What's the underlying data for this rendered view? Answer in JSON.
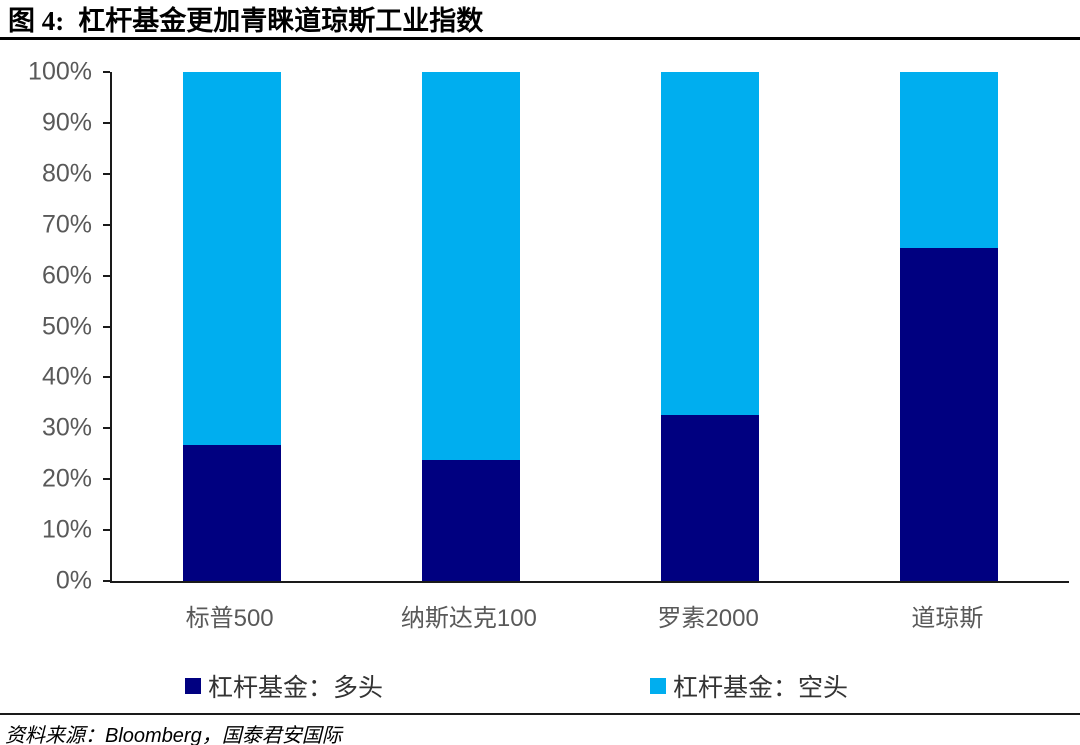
{
  "header": {
    "figure_label": "图 4:",
    "title": "杠杆基金更加青睐道琼斯工业指数"
  },
  "footer": {
    "source": "资料来源：Bloomberg，国泰君安国际"
  },
  "chart_data": {
    "type": "bar",
    "stacked": true,
    "percent_stacked": true,
    "title": "杠杆基金更加青睐道琼斯工业指数",
    "categories": [
      "标普500",
      "纳斯达克100",
      "罗素2000",
      "道琼斯"
    ],
    "series": [
      {
        "name": "杠杆基金：多头",
        "color": "#000080",
        "values": [
          26.7,
          23.8,
          32.6,
          65.4
        ]
      },
      {
        "name": "杠杆基金：空头",
        "color": "#00AEEF",
        "values": [
          73.3,
          76.2,
          67.4,
          34.6
        ]
      }
    ],
    "xlabel": "",
    "ylabel": "",
    "ylim": [
      0,
      100
    ],
    "yticks": [
      "0%",
      "10%",
      "20%",
      "30%",
      "40%",
      "50%",
      "60%",
      "70%",
      "80%",
      "90%",
      "100%"
    ],
    "grid": false,
    "legend_position": "bottom",
    "axis_color": "#1a1a1a",
    "tick_label_color": "#595959"
  }
}
